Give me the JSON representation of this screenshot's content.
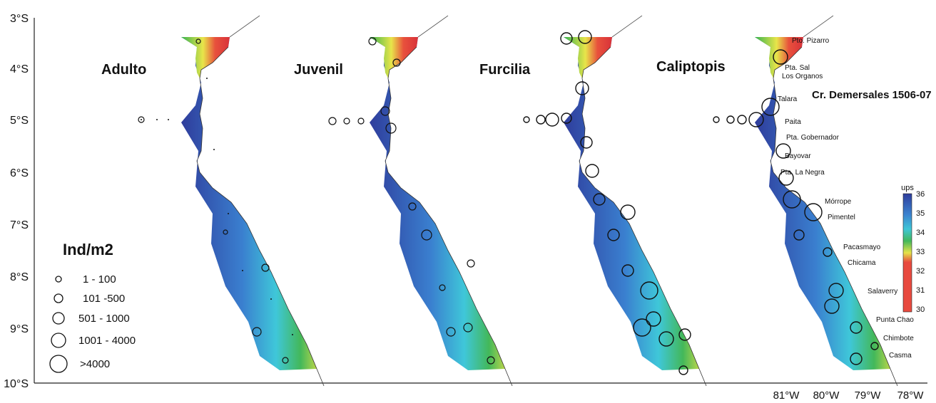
{
  "latitude_labels": [
    "3°S",
    "4°S",
    "5°S",
    "6°S",
    "7°S",
    "8°S",
    "9°S",
    "10°S"
  ],
  "longitude_labels": [
    "81°W",
    "80°W",
    "79°W",
    "78°W"
  ],
  "panels": [
    {
      "title": "Adulto"
    },
    {
      "title": "Juvenil"
    },
    {
      "title": "Furcilia"
    },
    {
      "title": "Caliptopis"
    }
  ],
  "cruise_label": "Cr. Demersales 1506-07",
  "place_names": [
    "Pto. Pizarro",
    "Pta. Sal",
    "Los Organos",
    "Talara",
    "Paita",
    "Pta. Gobernador",
    "Bayovar",
    "Pta. La Negra",
    "Mórrope",
    "Pimentel",
    "Pacasmayo",
    "Chicama",
    "Salaverry",
    "Punta Chao",
    "Chimbote",
    "Casma"
  ],
  "legend": {
    "title": "Ind/m2",
    "items": [
      "1 - 100",
      "101 -500",
      "501 - 1000",
      "1001 - 4000",
      ">4000"
    ]
  },
  "colorbar": {
    "title": "ups",
    "ticks": [
      "36",
      "35",
      "34",
      "33",
      "32",
      "31",
      "30"
    ],
    "colors": [
      "#2f3d9c",
      "#3b84d0",
      "#3ec6d6",
      "#43b85a",
      "#e6e34a",
      "#e84a3f"
    ]
  }
}
